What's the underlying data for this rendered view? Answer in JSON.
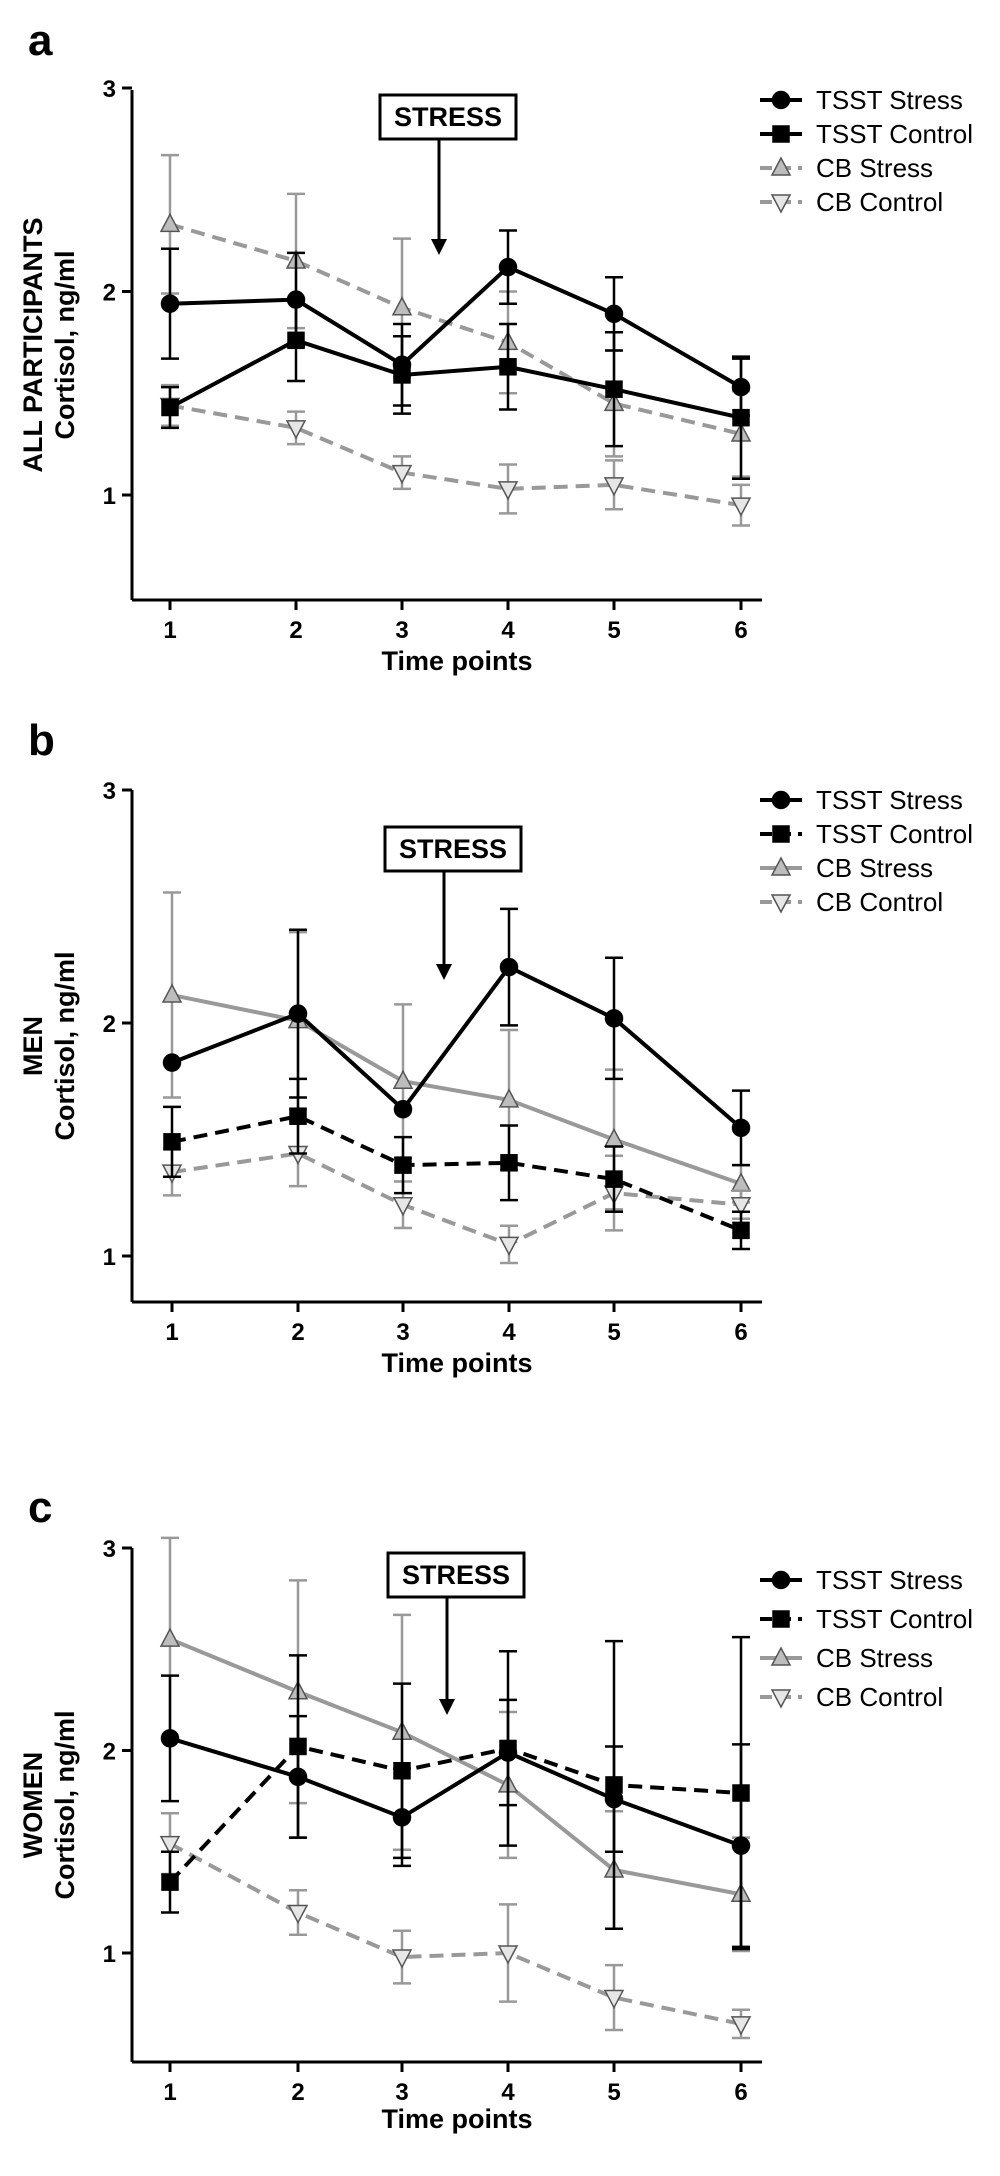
{
  "chart_data": [
    {
      "type": "line",
      "panel_label": "a",
      "ylabel_group": "ALL PARTICIPANTS",
      "ylabel": "Cortisol, ng/ml",
      "xlabel": "Time points",
      "x": [
        1,
        2,
        3,
        4,
        5,
        6
      ],
      "ylim": [
        0.5,
        3
      ],
      "yticks": [
        1,
        2,
        3
      ],
      "annotation": {
        "text": "STRESS",
        "x": 3.4
      },
      "legend_position": "top-right",
      "series": [
        {
          "name": "TSST Stress",
          "color": "#000000",
          "dashed": false,
          "marker": "circle",
          "values": [
            1.94,
            1.96,
            1.64,
            2.12,
            1.89,
            1.53
          ],
          "errors": [
            0.27,
            0.23,
            0.2,
            0.18,
            0.18,
            0.14
          ]
        },
        {
          "name": "TSST Control",
          "color": "#000000",
          "dashed": false,
          "marker": "square",
          "values": [
            1.43,
            1.76,
            1.59,
            1.63,
            1.52,
            1.38
          ],
          "errors": [
            0.1,
            0.2,
            0.19,
            0.21,
            0.28,
            0.3
          ]
        },
        {
          "name": "CB Stress",
          "color": "#999999",
          "dashed": true,
          "marker": "triangle-up",
          "values": [
            2.33,
            2.15,
            1.92,
            1.75,
            1.45,
            1.3
          ],
          "errors": [
            0.34,
            0.33,
            0.34,
            0.25,
            0.26,
            0.21
          ]
        },
        {
          "name": "CB Control",
          "color": "#999999",
          "dashed": true,
          "marker": "triangle-down",
          "values": [
            1.44,
            1.33,
            1.11,
            1.03,
            1.05,
            0.95
          ],
          "errors": [
            0.1,
            0.08,
            0.08,
            0.12,
            0.12,
            0.1
          ]
        }
      ]
    },
    {
      "type": "line",
      "panel_label": "b",
      "ylabel_group": "MEN",
      "ylabel": "Cortisol, ng/ml",
      "xlabel": "Time points",
      "x": [
        1,
        2,
        3,
        4,
        5,
        6
      ],
      "ylim": [
        0.8,
        3
      ],
      "yticks": [
        1,
        2,
        3
      ],
      "annotation": {
        "text": "STRESS",
        "x": 3.45
      },
      "legend_position": "top-right",
      "series": [
        {
          "name": "TSST Stress",
          "color": "#000000",
          "dashed": false,
          "marker": "circle",
          "values": [
            1.83,
            2.04,
            1.63,
            2.24,
            2.02,
            1.55
          ],
          "errors": [
            0.0,
            0.36,
            0.0,
            0.25,
            0.26,
            0.16
          ]
        },
        {
          "name": "TSST Control",
          "color": "#000000",
          "dashed": true,
          "marker": "square",
          "values": [
            1.49,
            1.6,
            1.39,
            1.4,
            1.33,
            1.11
          ],
          "errors": [
            0.15,
            0.16,
            0.12,
            0.16,
            0.14,
            0.08
          ]
        },
        {
          "name": "CB Stress",
          "color": "#999999",
          "dashed": false,
          "marker": "triangle-up",
          "values": [
            2.12,
            2.01,
            1.75,
            1.67,
            1.5,
            1.31
          ],
          "errors": [
            0.44,
            0.38,
            0.33,
            0.3,
            0.3,
            0.08
          ]
        },
        {
          "name": "CB Control",
          "color": "#999999",
          "dashed": true,
          "marker": "triangle-down",
          "values": [
            1.36,
            1.44,
            1.22,
            1.05,
            1.27,
            1.22
          ],
          "errors": [
            0.1,
            0.14,
            0.1,
            0.08,
            0.16,
            0.06
          ]
        }
      ]
    },
    {
      "type": "line",
      "panel_label": "c",
      "ylabel_group": "WOMEN",
      "ylabel": "Cortisol, ng/ml",
      "xlabel": "Time points",
      "x": [
        1,
        2,
        3,
        4,
        5,
        6
      ],
      "ylim": [
        0.5,
        3
      ],
      "yticks": [
        1,
        2,
        3
      ],
      "annotation": {
        "text": "STRESS",
        "x": 3.5
      },
      "legend_position": "top-right",
      "series": [
        {
          "name": "TSST Stress",
          "color": "#000000",
          "dashed": false,
          "marker": "circle",
          "values": [
            2.06,
            1.87,
            1.67,
            1.99,
            1.76,
            1.53
          ],
          "errors": [
            0.31,
            0.3,
            0.24,
            0.26,
            0.26,
            0.5
          ]
        },
        {
          "name": "TSST Control",
          "color": "#000000",
          "dashed": true,
          "marker": "square",
          "values": [
            1.35,
            2.02,
            1.9,
            2.01,
            1.83,
            1.79
          ],
          "errors": [
            0.15,
            0.45,
            0.43,
            0.48,
            0.71,
            0.77
          ]
        },
        {
          "name": "CB Stress",
          "color": "#999999",
          "dashed": false,
          "marker": "triangle-up",
          "values": [
            2.55,
            2.29,
            2.09,
            1.83,
            1.41,
            1.29
          ],
          "errors": [
            0.5,
            0.55,
            0.58,
            0.36,
            0.29,
            0.28
          ]
        },
        {
          "name": "CB Control",
          "color": "#999999",
          "dashed": true,
          "marker": "triangle-down",
          "values": [
            1.54,
            1.2,
            0.98,
            1.0,
            0.78,
            0.65
          ],
          "errors": [
            0.15,
            0.11,
            0.13,
            0.24,
            0.16,
            0.07
          ]
        }
      ]
    }
  ]
}
